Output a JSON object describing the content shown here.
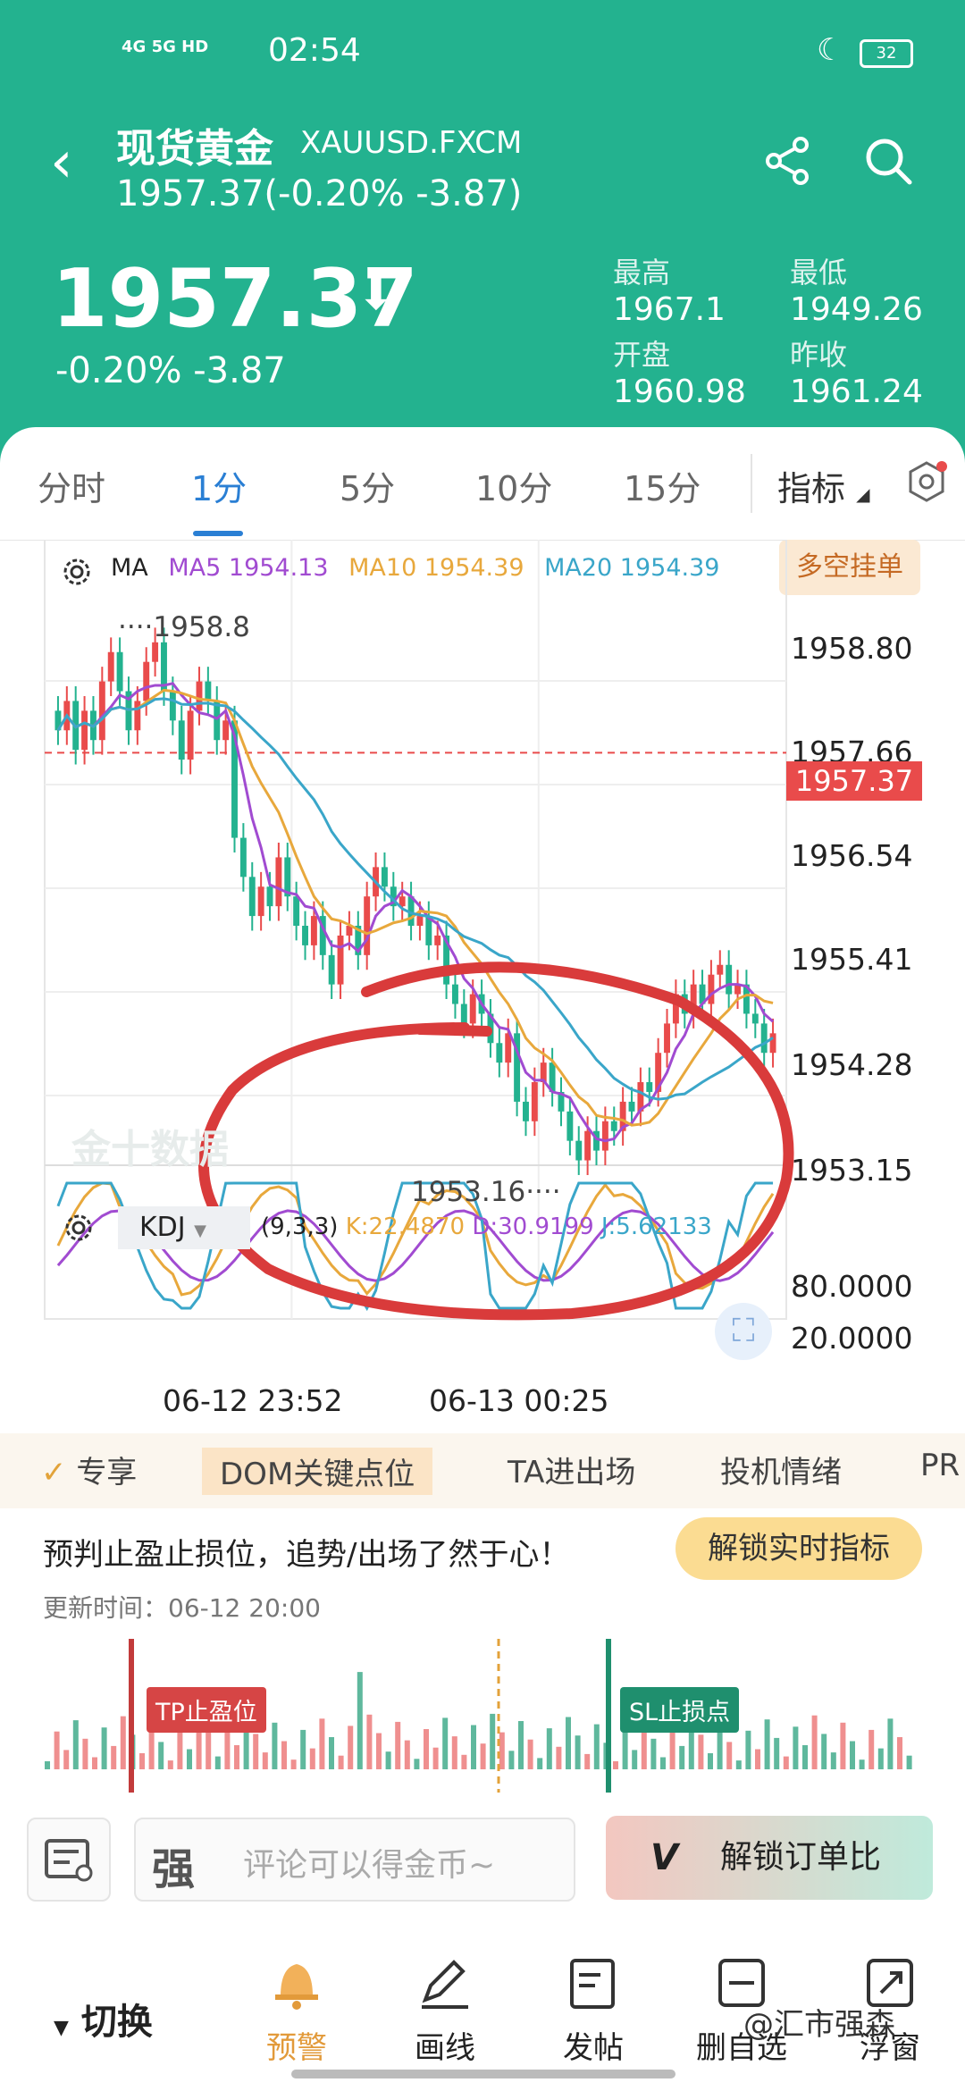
{
  "status_bar": {
    "net": "4G 5G HD",
    "time": "02:54",
    "battery": "32"
  },
  "header": {
    "title": "现货黄金",
    "symbol": "XAUUSD.FXCM",
    "sub_price": "1957.37(-0.20% -3.87)",
    "price": "1957.37",
    "change": "-0.20% -3.87",
    "stats": [
      {
        "label": "最高",
        "value": "1967.1"
      },
      {
        "label": "最低",
        "value": "1949.26"
      },
      {
        "label": "开盘",
        "value": "1960.98"
      },
      {
        "label": "昨收",
        "value": "1961.24"
      }
    ]
  },
  "tabs": [
    "分时",
    "1分",
    "5分",
    "10分",
    "15分",
    "指标"
  ],
  "active_tab": "1分",
  "ma_legend": {
    "ma": "MA",
    "ma5": "MA5 1954.13",
    "ma10": "MA10 1954.39",
    "ma20": "MA20 1954.39"
  },
  "duokong": "多空挂单",
  "price_ticks": [
    "1958.80",
    "1957.66",
    "1956.54",
    "1955.41",
    "1954.28",
    "1953.15"
  ],
  "current_price_tag": "1957.37",
  "annotations": {
    "high": "1958.8",
    "low": "1953.16"
  },
  "watermark": "金十数据",
  "kdj": {
    "name": "KDJ",
    "params": "(9,3,3)",
    "k": "K:22.4870",
    "d": "D:30.9199",
    "j": "J:5.62133",
    "ticks": [
      "80.0000",
      "20.0000"
    ]
  },
  "time_axis": [
    "06-12 23:52",
    "06-13 00:25"
  ],
  "feature_tabs": [
    "专享",
    "DOM关键点位",
    "TA进出场",
    "投机情绪",
    "PR"
  ],
  "promo": {
    "text": "预判止盈止损位，追势/出场了然于心！",
    "button": "解锁实时指标",
    "update": "更新时间：06-12 20:00",
    "tp": "TP止盈位",
    "sl": "SL止损点"
  },
  "comment_placeholder": "评论可以得金币~",
  "vip_button": "解锁订单比",
  "nav": {
    "switch": "切换",
    "items": [
      "预警",
      "画线",
      "发帖",
      "删自选",
      "浮窗"
    ]
  },
  "credit": "@汇市强森",
  "colors": {
    "header": "#23b28f",
    "up": "#e94b4b",
    "down": "#23b28f",
    "ma5": "#a14bd1",
    "ma10": "#e8a83c",
    "ma20": "#3aa6c9"
  },
  "chart_data": {
    "type": "candlestick",
    "timeframe": "1分",
    "x_labels": [
      "06-12 23:52",
      "06-13 00:25"
    ],
    "ylim": [
      1953.0,
      1959.4
    ],
    "y_ticks": [
      1958.8,
      1957.66,
      1956.54,
      1955.41,
      1954.28,
      1953.15
    ],
    "current_price": 1957.37,
    "annotated_high": 1958.8,
    "annotated_low": 1953.16,
    "closes": [
      1957.6,
      1957.9,
      1957.4,
      1957.8,
      1957.5,
      1958.1,
      1958.4,
      1958.0,
      1957.6,
      1957.9,
      1958.3,
      1958.5,
      1958.0,
      1957.7,
      1957.3,
      1957.8,
      1958.1,
      1957.9,
      1957.5,
      1957.7,
      1956.5,
      1956.1,
      1955.7,
      1956.0,
      1955.8,
      1956.3,
      1955.9,
      1955.6,
      1955.4,
      1955.7,
      1955.3,
      1955.0,
      1955.5,
      1955.6,
      1955.3,
      1955.9,
      1956.2,
      1956.0,
      1955.8,
      1955.9,
      1955.6,
      1955.7,
      1955.4,
      1955.5,
      1955.0,
      1954.8,
      1954.6,
      1954.9,
      1954.7,
      1954.4,
      1954.2,
      1954.5,
      1953.8,
      1953.6,
      1954.0,
      1954.2,
      1953.9,
      1953.7,
      1953.4,
      1953.2,
      1953.5,
      1953.3,
      1953.6,
      1953.5,
      1953.8,
      1953.7,
      1954.0,
      1953.9,
      1954.3,
      1954.6,
      1954.9,
      1954.7,
      1955.0,
      1954.8,
      1955.1,
      1955.2,
      1954.9,
      1955.0,
      1954.7,
      1954.6,
      1954.3,
      1954.5
    ]
  }
}
